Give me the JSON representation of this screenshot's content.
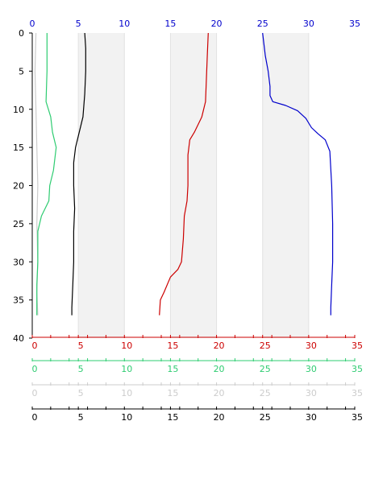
{
  "chart_data": {
    "type": "line",
    "title": "",
    "xlabel": "",
    "ylabel": "",
    "orientation": "depth-profile",
    "ylim": [
      0,
      40
    ],
    "y_inverted": true,
    "y_ticks": [
      0,
      5,
      10,
      15,
      20,
      25,
      30,
      35,
      40
    ],
    "grid": false,
    "shaded_bands": [
      [
        5,
        10
      ],
      [
        15,
        20
      ],
      [
        25,
        30
      ]
    ],
    "axes": [
      {
        "id": "top",
        "position": "top",
        "color": "#0000cc",
        "xlim": [
          0,
          35
        ],
        "ticks": [
          0,
          5,
          10,
          15,
          20,
          25,
          30,
          35
        ]
      },
      {
        "id": "red",
        "position": "bottom",
        "color": "#cc0000",
        "xlim": [
          0,
          35
        ],
        "ticks": [
          0,
          5,
          10,
          15,
          20,
          25,
          30,
          35
        ]
      },
      {
        "id": "green",
        "position": "bottom",
        "color": "#2ecc71",
        "xlim": [
          0,
          35
        ],
        "ticks": [
          0,
          5,
          10,
          15,
          20,
          25,
          30,
          35
        ]
      },
      {
        "id": "gray",
        "position": "bottom",
        "color": "#cccccc",
        "xlim": [
          0,
          35
        ],
        "ticks": [
          0,
          5,
          10,
          15,
          20,
          25,
          30,
          35
        ]
      },
      {
        "id": "black",
        "position": "bottom",
        "color": "#000000",
        "xlim": [
          0,
          35
        ],
        "ticks": [
          0,
          5,
          10,
          15,
          20,
          25,
          30,
          35
        ]
      }
    ],
    "series": [
      {
        "color": "#cccccc",
        "points": [
          [
            0.4,
            0
          ],
          [
            0.3,
            5
          ],
          [
            0.4,
            10
          ],
          [
            0.5,
            15
          ],
          [
            0.6,
            20
          ],
          [
            0.5,
            25
          ],
          [
            0.6,
            30
          ],
          [
            0.5,
            34
          ],
          [
            0.6,
            37
          ]
        ]
      },
      {
        "color": "#2ecc71",
        "points": [
          [
            1.6,
            0
          ],
          [
            1.6,
            5
          ],
          [
            1.5,
            9
          ],
          [
            2.0,
            11
          ],
          [
            2.2,
            13
          ],
          [
            2.6,
            15
          ],
          [
            2.3,
            18
          ],
          [
            1.9,
            20
          ],
          [
            1.8,
            22
          ],
          [
            1.0,
            24
          ],
          [
            0.6,
            26
          ],
          [
            0.6,
            30
          ],
          [
            0.5,
            33
          ],
          [
            0.5,
            37
          ]
        ]
      },
      {
        "color": "#000000",
        "points": [
          [
            5.7,
            0
          ],
          [
            5.8,
            2
          ],
          [
            5.8,
            5
          ],
          [
            5.7,
            8
          ],
          [
            5.5,
            11
          ],
          [
            5.1,
            13
          ],
          [
            4.7,
            15
          ],
          [
            4.5,
            17
          ],
          [
            4.5,
            20
          ],
          [
            4.6,
            23
          ],
          [
            4.5,
            26
          ],
          [
            4.5,
            30
          ],
          [
            4.4,
            33
          ],
          [
            4.3,
            36
          ],
          [
            4.3,
            37
          ]
        ]
      },
      {
        "color": "#cc0000",
        "points": [
          [
            19.1,
            0
          ],
          [
            19.0,
            3
          ],
          [
            18.9,
            6
          ],
          [
            18.8,
            9
          ],
          [
            18.4,
            11
          ],
          [
            17.6,
            13
          ],
          [
            17.1,
            14
          ],
          [
            16.9,
            16
          ],
          [
            16.9,
            20
          ],
          [
            16.8,
            22
          ],
          [
            16.5,
            24
          ],
          [
            16.4,
            27
          ],
          [
            16.2,
            30
          ],
          [
            15.8,
            31
          ],
          [
            15.0,
            32
          ],
          [
            14.3,
            34
          ],
          [
            13.9,
            35
          ],
          [
            13.8,
            37
          ]
        ]
      },
      {
        "color": "#0000cc",
        "points": [
          [
            25.0,
            0
          ],
          [
            25.3,
            3
          ],
          [
            25.6,
            5
          ],
          [
            25.8,
            7
          ],
          [
            25.8,
            8.2
          ],
          [
            26.1,
            9
          ],
          [
            27.5,
            9.5
          ],
          [
            28.8,
            10.2
          ],
          [
            29.7,
            11.2
          ],
          [
            30.3,
            12.4
          ],
          [
            31.0,
            13.2
          ],
          [
            31.8,
            14
          ],
          [
            32.3,
            15.5
          ],
          [
            32.5,
            20
          ],
          [
            32.6,
            25
          ],
          [
            32.6,
            30
          ],
          [
            32.5,
            33
          ],
          [
            32.4,
            36
          ],
          [
            32.4,
            37
          ]
        ]
      }
    ]
  }
}
